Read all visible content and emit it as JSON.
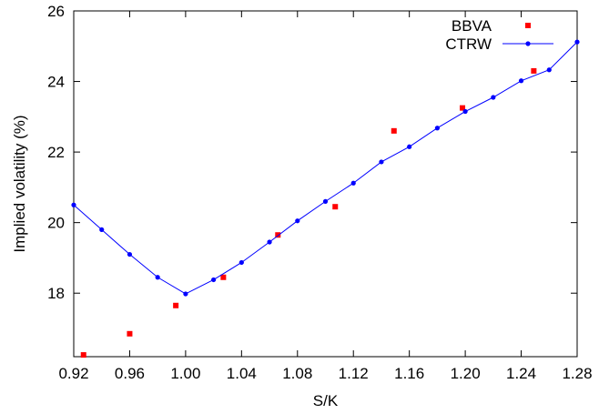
{
  "chart_data": {
    "type": "scatter",
    "title": "",
    "xlabel": "S/K",
    "ylabel": "Implied volatility (%)",
    "xlim": [
      0.92,
      1.28
    ],
    "ylim": [
      16.2,
      26
    ],
    "xticks": [
      {
        "value": 0.92,
        "label": "0.92"
      },
      {
        "value": 0.96,
        "label": "0.96"
      },
      {
        "value": 1.0,
        "label": "1.00"
      },
      {
        "value": 1.04,
        "label": "1.04"
      },
      {
        "value": 1.08,
        "label": "1.08"
      },
      {
        "value": 1.12,
        "label": "1.12"
      },
      {
        "value": 1.16,
        "label": "1.16"
      },
      {
        "value": 1.2,
        "label": "1.20"
      },
      {
        "value": 1.24,
        "label": "1.24"
      },
      {
        "value": 1.28,
        "label": "1.28"
      }
    ],
    "yticks": [
      {
        "value": 18,
        "label": "18"
      },
      {
        "value": 20,
        "label": "20"
      },
      {
        "value": 22,
        "label": "22"
      },
      {
        "value": 24,
        "label": "24"
      },
      {
        "value": 26,
        "label": "26"
      }
    ],
    "grid": false,
    "legend_position": "top-right",
    "series": [
      {
        "name": "BBVA",
        "kind": "points",
        "marker": "square",
        "color": "#ff0000",
        "x": [
          0.927,
          0.96,
          0.993,
          1.027,
          1.066,
          1.107,
          1.149,
          1.198,
          1.249
        ],
        "y": [
          16.25,
          16.85,
          17.65,
          18.45,
          19.65,
          20.45,
          22.6,
          23.25,
          24.3
        ]
      },
      {
        "name": "CTRW",
        "kind": "linespoints",
        "marker": "circle",
        "color": "#0000ff",
        "x": [
          0.92,
          0.94,
          0.96,
          0.98,
          1.0,
          1.02,
          1.04,
          1.06,
          1.08,
          1.1,
          1.12,
          1.14,
          1.16,
          1.18,
          1.2,
          1.22,
          1.24,
          1.26,
          1.28
        ],
        "y": [
          20.5,
          19.8,
          19.1,
          18.45,
          17.98,
          18.38,
          18.87,
          19.45,
          20.05,
          20.6,
          21.12,
          21.72,
          22.15,
          22.68,
          23.15,
          23.55,
          24.02,
          24.33,
          25.12
        ]
      }
    ]
  }
}
